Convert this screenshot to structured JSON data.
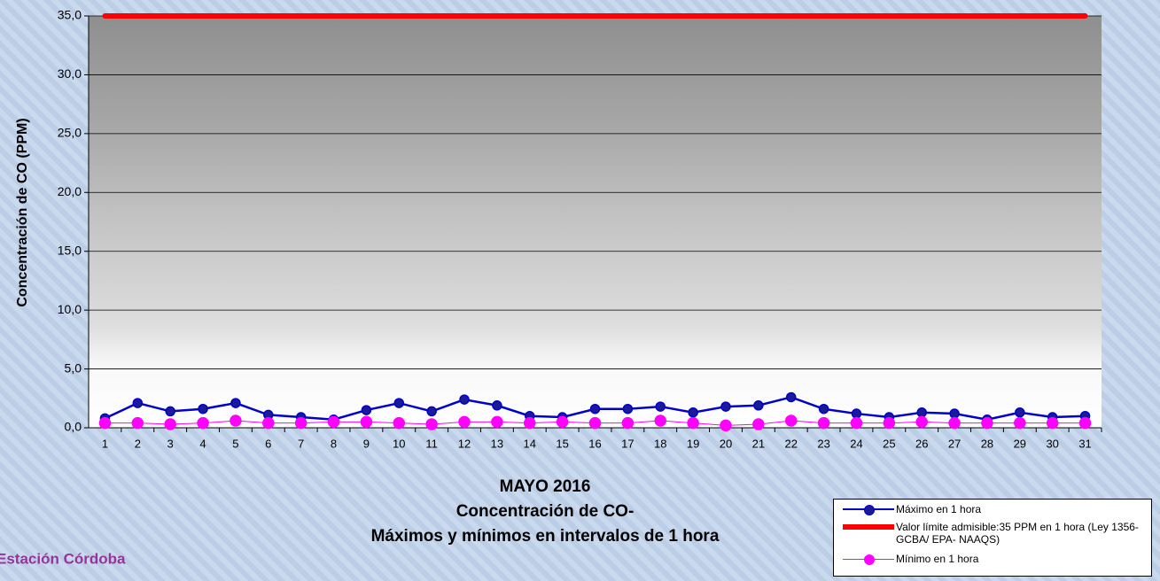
{
  "chart_data": {
    "type": "line",
    "title": [
      "MAYO 2016",
      "Concentración de CO-",
      "Máximos y mínimos en intervalos de 1 hora"
    ],
    "station": "Estación Córdoba",
    "y_label": "Concentración de CO (PPM)",
    "categories": [
      "1",
      "2",
      "3",
      "4",
      "5",
      "6",
      "7",
      "8",
      "9",
      "10",
      "11",
      "12",
      "13",
      "14",
      "15",
      "16",
      "17",
      "18",
      "19",
      "20",
      "21",
      "22",
      "23",
      "24",
      "25",
      "26",
      "27",
      "28",
      "29",
      "30",
      "31"
    ],
    "series": [
      {
        "name": "Máximo en 1 hora",
        "color": "#0000cc",
        "marker": true,
        "line_width": 2.5,
        "values": [
          0.8,
          2.1,
          1.4,
          1.6,
          2.1,
          1.1,
          0.9,
          0.7,
          1.5,
          2.1,
          1.4,
          2.4,
          1.9,
          1.0,
          0.9,
          1.6,
          1.6,
          1.8,
          1.3,
          1.8,
          1.9,
          2.6,
          1.6,
          1.2,
          0.9,
          1.3,
          1.2,
          0.7,
          1.3,
          0.9,
          1.0
        ]
      },
      {
        "name": "Valor límite admisible:35 PPM en 1 hora (Ley 1356-GCBA/ EPA- NAAQS)",
        "color": "#ff0000",
        "marker": false,
        "line_width": 6,
        "values": [
          35,
          35,
          35,
          35,
          35,
          35,
          35,
          35,
          35,
          35,
          35,
          35,
          35,
          35,
          35,
          35,
          35,
          35,
          35,
          35,
          35,
          35,
          35,
          35,
          35,
          35,
          35,
          35,
          35,
          35,
          35
        ]
      },
      {
        "name": "Mínimo en 1 hora",
        "color": "#ff00ff",
        "marker": true,
        "line_width": 1,
        "values": [
          0.4,
          0.4,
          0.3,
          0.4,
          0.6,
          0.4,
          0.4,
          0.5,
          0.5,
          0.4,
          0.3,
          0.5,
          0.5,
          0.4,
          0.5,
          0.4,
          0.4,
          0.6,
          0.4,
          0.2,
          0.3,
          0.6,
          0.4,
          0.4,
          0.4,
          0.5,
          0.4,
          0.4,
          0.4,
          0.4,
          0.4
        ]
      }
    ],
    "ylim": [
      0,
      35
    ],
    "yticks": [
      {
        "value": 0,
        "label": "0,0"
      },
      {
        "value": 5,
        "label": "5,0"
      },
      {
        "value": 10,
        "label": "10,0"
      },
      {
        "value": 15,
        "label": "15,0"
      },
      {
        "value": 20,
        "label": "20,0"
      },
      {
        "value": 25,
        "label": "25,0"
      },
      {
        "value": 30,
        "label": "30,0"
      },
      {
        "value": 35,
        "label": "35,0"
      }
    ],
    "grid": true
  }
}
